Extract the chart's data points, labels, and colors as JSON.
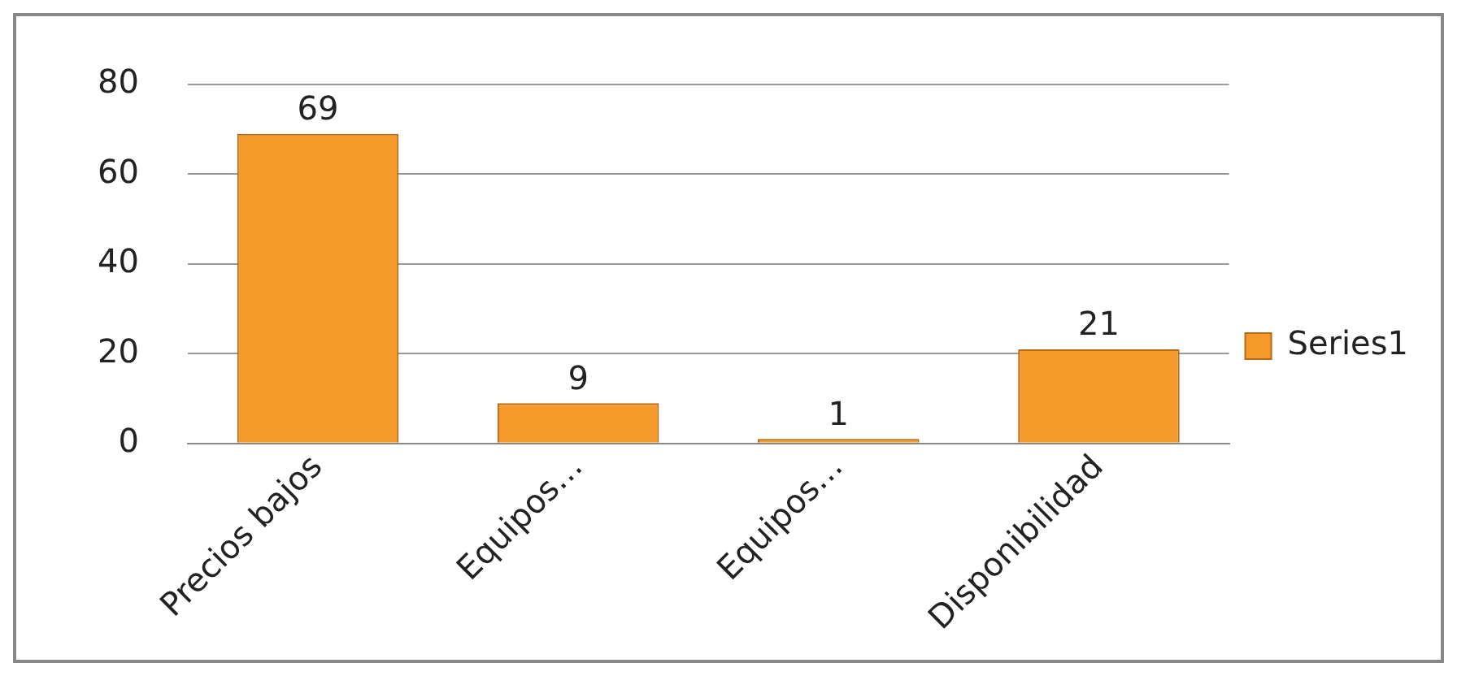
{
  "chart_data": {
    "type": "bar",
    "categories": [
      "Precios bajos",
      "Equipos…",
      "Equipos…",
      "Disponibilidad"
    ],
    "series": [
      {
        "name": "Series1",
        "color": "#f39a2b",
        "values": [
          69,
          9,
          1,
          21
        ]
      }
    ],
    "ylim": [
      0,
      80
    ],
    "yticks": [
      0,
      20,
      40,
      60,
      80
    ],
    "grid": "y",
    "legend": "right",
    "data_labels": true
  }
}
